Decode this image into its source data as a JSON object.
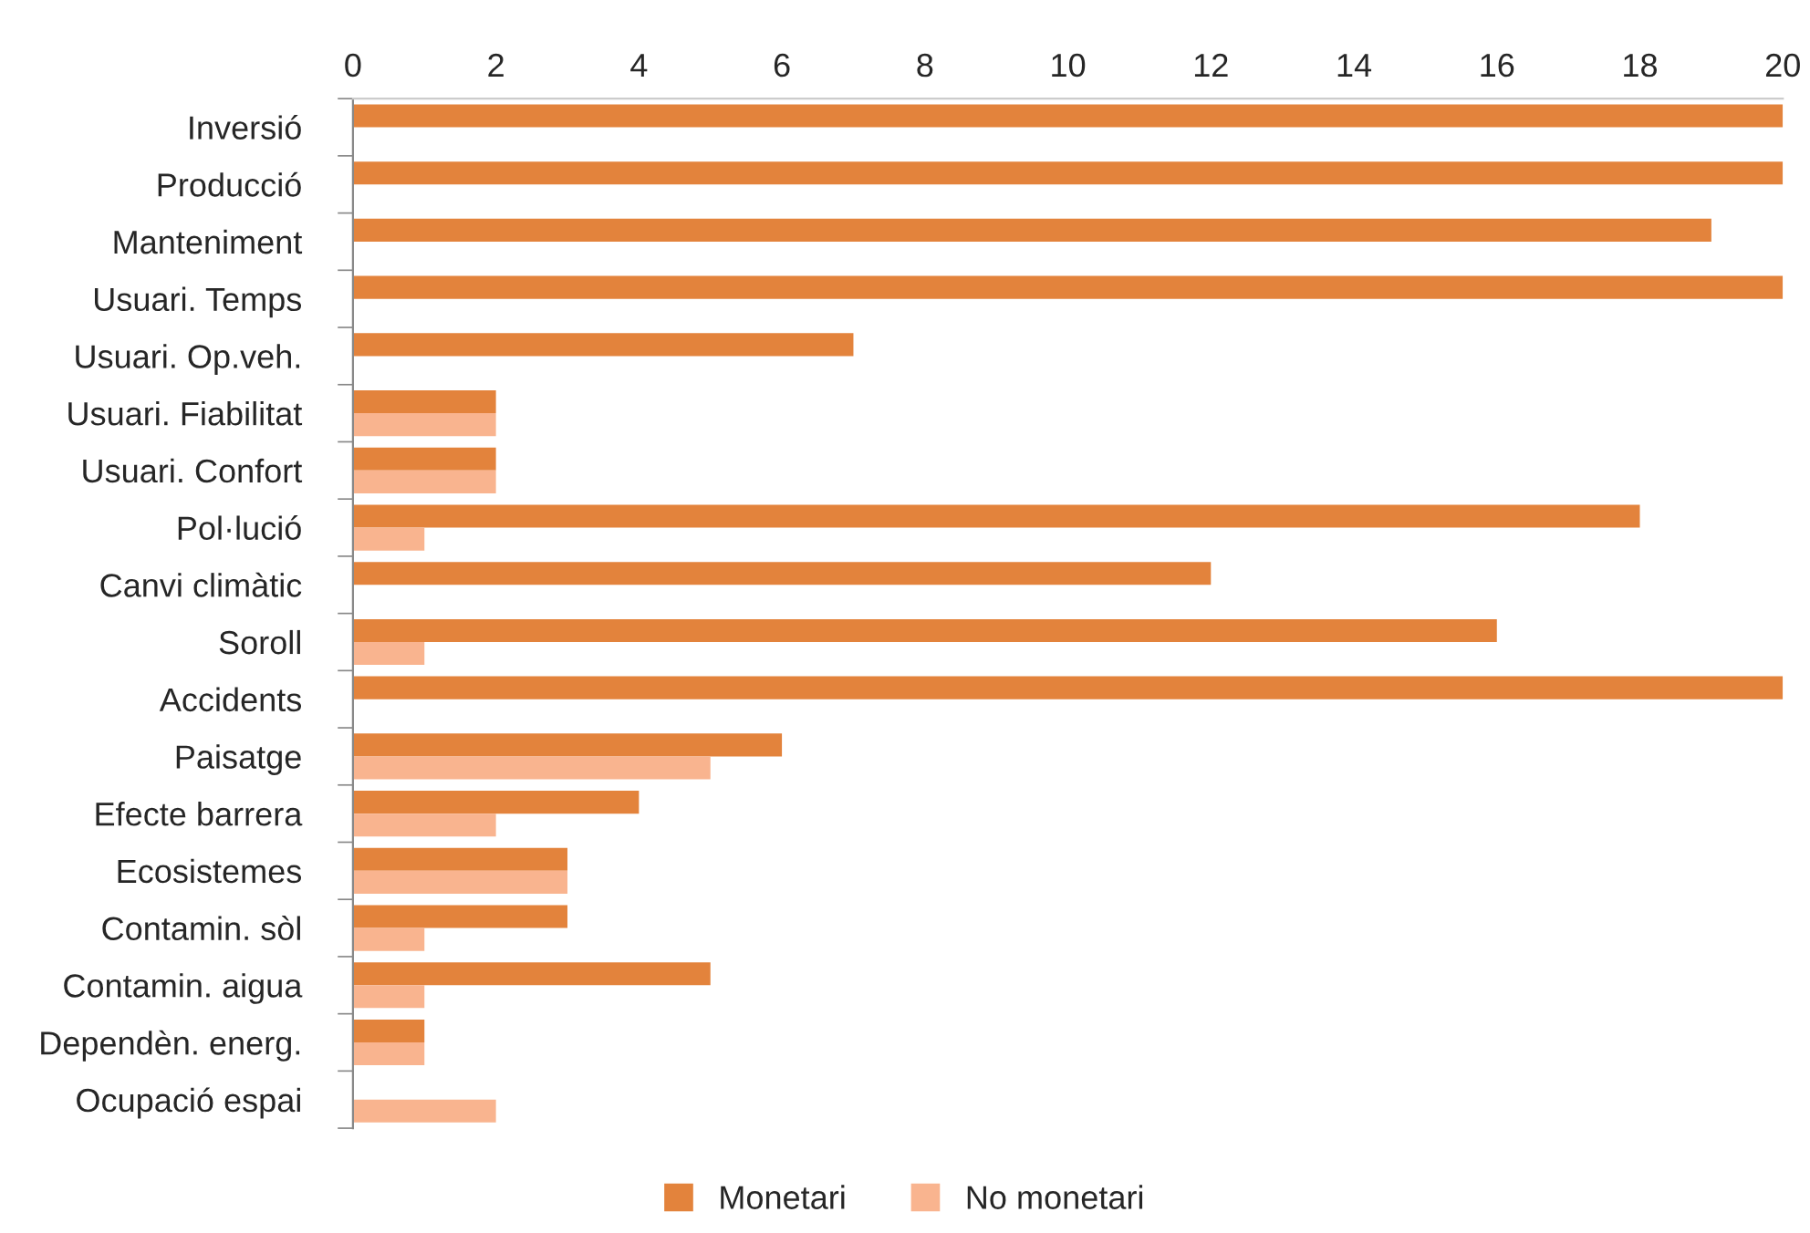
{
  "chart_data": {
    "type": "bar",
    "orientation": "horizontal",
    "categories": [
      "Inversió",
      "Producció",
      "Manteniment",
      "Usuari. Temps",
      "Usuari. Op.veh.",
      "Usuari. Fiabilitat",
      "Usuari. Confort",
      "Pol·lució",
      "Canvi climàtic",
      "Soroll",
      "Accidents",
      "Paisatge",
      "Efecte barrera",
      "Ecosistemes",
      "Contamin. sòl",
      "Contamin. aigua",
      "Dependèn. energ.",
      "Ocupació espai"
    ],
    "series": [
      {
        "name": "Monetari",
        "color": "#e3833c",
        "values": [
          20,
          20,
          19,
          20,
          7,
          2,
          2,
          18,
          12,
          16,
          20,
          6,
          4,
          3,
          3,
          5,
          1,
          null
        ]
      },
      {
        "name": "No monetari",
        "color": "#f9b48f",
        "values": [
          null,
          null,
          null,
          null,
          null,
          2,
          2,
          1,
          null,
          1,
          null,
          5,
          2,
          3,
          1,
          1,
          1,
          2
        ]
      }
    ],
    "xlim": [
      0,
      20
    ],
    "xticks": [
      0,
      2,
      4,
      6,
      8,
      10,
      12,
      14,
      16,
      18,
      20
    ],
    "grid": false,
    "legend": "bottom"
  }
}
